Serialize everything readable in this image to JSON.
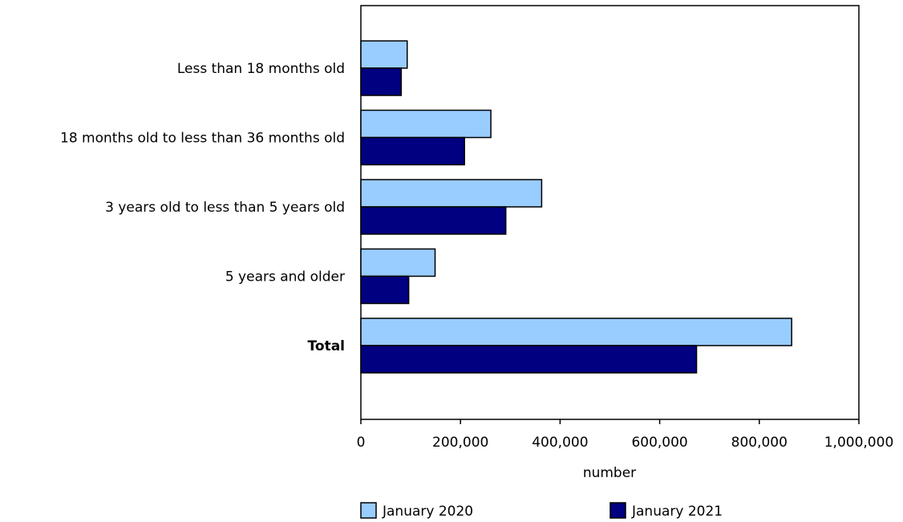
{
  "chart_data": {
    "type": "bar",
    "orientation": "horizontal",
    "categories": [
      "Less than 18 months old",
      "18 months old to less than 36 months old",
      "3 years old to less than 5 years old",
      "5 years and older",
      "Total"
    ],
    "bold_categories": [
      "Total"
    ],
    "series": [
      {
        "name": "January 2020",
        "color": "#99ccff",
        "values": [
          93000,
          261000,
          363000,
          149000,
          865000
        ]
      },
      {
        "name": "January 2021",
        "color": "#000080",
        "values": [
          81000,
          208000,
          291000,
          96000,
          674000
        ]
      }
    ],
    "xlabel": "number",
    "xlim": [
      0,
      1000000
    ],
    "xticks": [
      0,
      200000,
      400000,
      600000,
      800000,
      1000000
    ],
    "xtick_labels": [
      "0",
      "200,000",
      "400,000",
      "600,000",
      "800,000",
      "1,000,000"
    ],
    "grid": false,
    "legend_position": "bottom"
  }
}
